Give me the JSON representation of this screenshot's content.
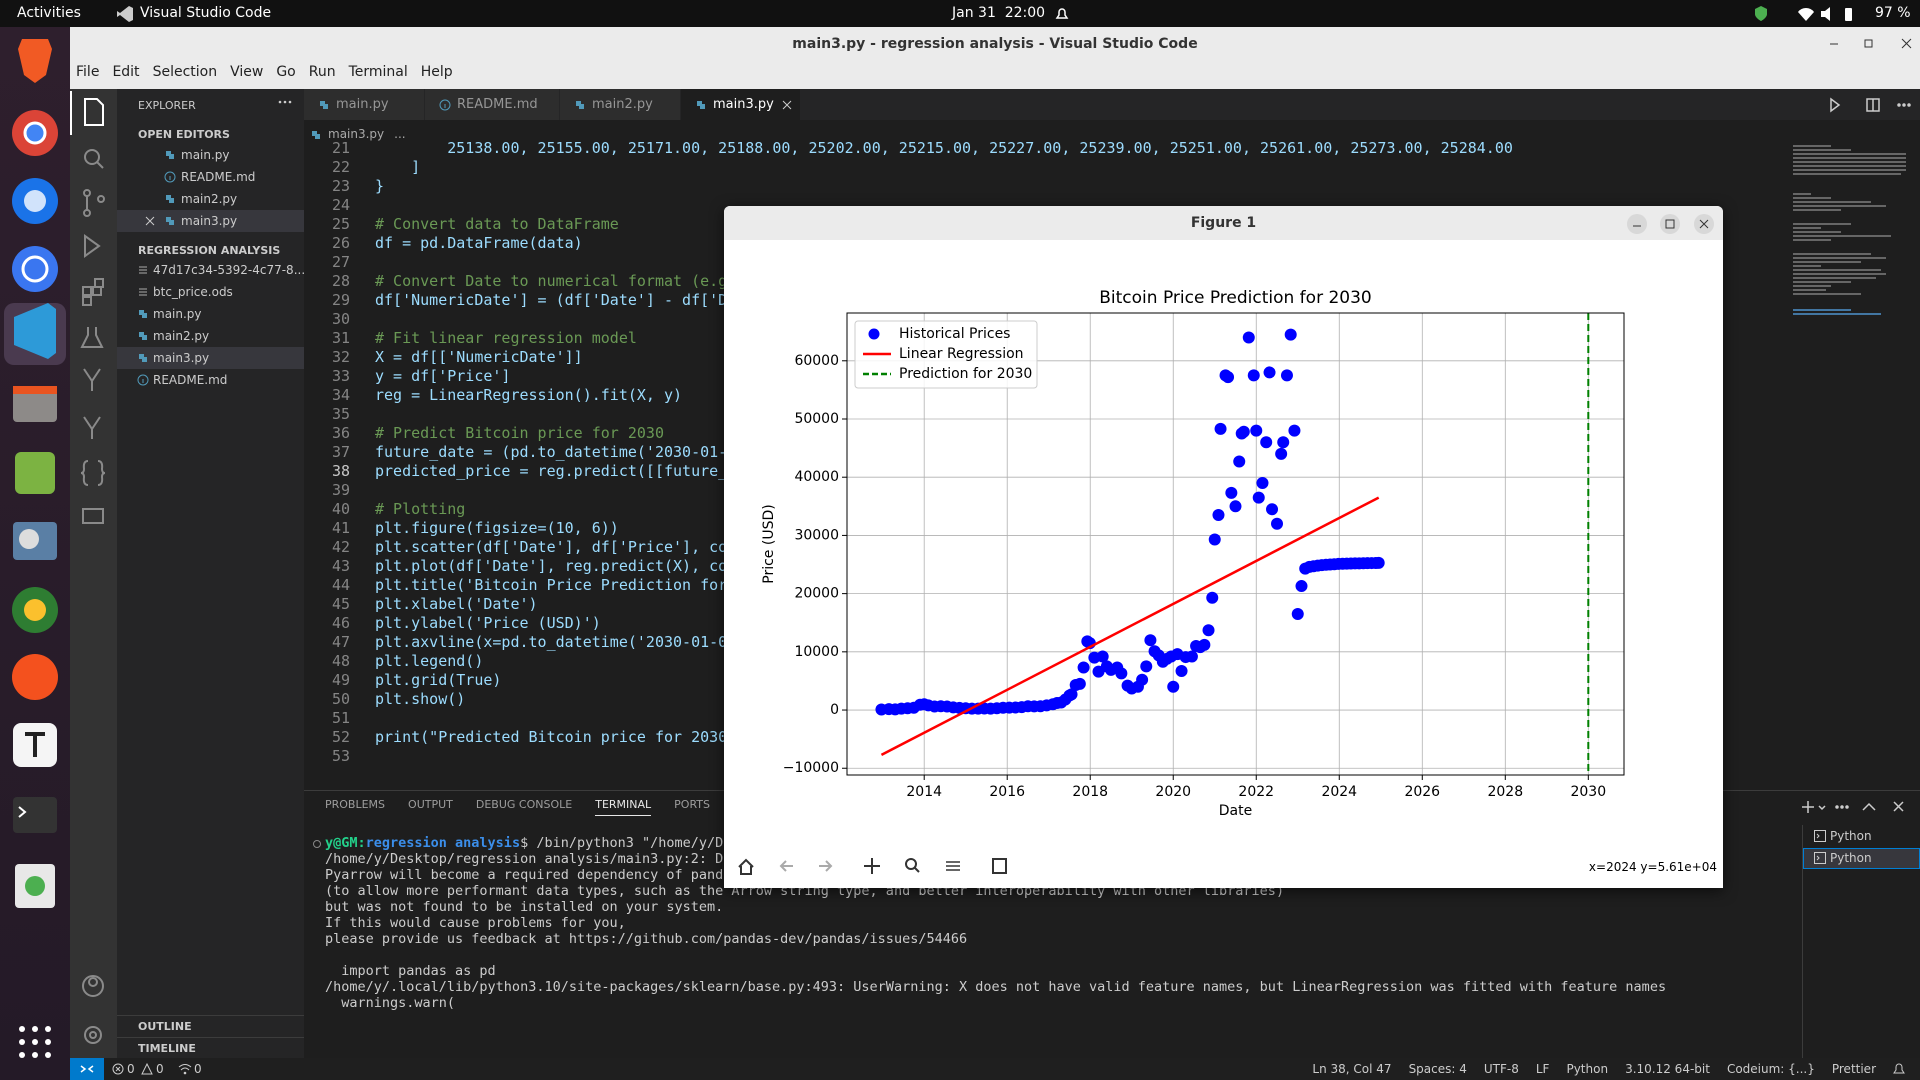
{
  "topbar": {
    "activities": "Activities",
    "app": "Visual Studio Code",
    "clock": "Jan 31  22:00",
    "battery": "97 %"
  },
  "window": {
    "title": "main3.py - regression analysis - Visual Studio Code"
  },
  "menu": [
    "File",
    "Edit",
    "Selection",
    "View",
    "Go",
    "Run",
    "Terminal",
    "Help"
  ],
  "sidebar": {
    "header": "EXPLORER",
    "open_editors_title": "OPEN EDITORS",
    "open_editors": [
      "main.py",
      "README.md",
      "main2.py",
      "main3.py"
    ],
    "folder_title": "REGRESSION ANALYSIS",
    "files": [
      "47d17c34-5392-4c77-8...",
      "btc_price.ods",
      "main.py",
      "main2.py",
      "main3.py",
      "README.md"
    ],
    "outline": "OUTLINE",
    "timeline": "TIMELINE"
  },
  "tabs": [
    "main.py",
    "README.md",
    "main2.py",
    "main3.py"
  ],
  "breadcrumb": [
    "main3.py",
    "..."
  ],
  "code": {
    "current_line": 38,
    "lines": [
      {
        "n": 21,
        "text": "        25138.00, 25155.00, 25171.00, 25188.00, 25202.00, 25215.00, 25227.00, 25239.00, 25251.00, 25261.00, 25273.00, 25284.00"
      },
      {
        "n": 22,
        "text": "    ]"
      },
      {
        "n": 23,
        "text": "}"
      },
      {
        "n": 24
      },
      {
        "n": 25,
        "text": "# Convert data to DataFrame"
      },
      {
        "n": 26,
        "text": "df = pd.DataFrame(data)"
      },
      {
        "n": 27
      },
      {
        "n": 28,
        "text": "# Convert Date to numerical format (e.g.,"
      },
      {
        "n": 29,
        "text": "df['NumericDate'] = (df['Date'] - df['Date"
      },
      {
        "n": 30
      },
      {
        "n": 31,
        "text": "# Fit linear regression model"
      },
      {
        "n": 32,
        "text": "X = df[['NumericDate']]"
      },
      {
        "n": 33,
        "text": "y = df['Price']"
      },
      {
        "n": 34,
        "text": "reg = LinearRegression().fit(X, y)"
      },
      {
        "n": 35
      },
      {
        "n": 36,
        "text": "# Predict Bitcoin price for 2030"
      },
      {
        "n": 37,
        "text": "future_date = (pd.to_datetime('2030-01-01"
      },
      {
        "n": 38,
        "text": "predicted_price = reg.predict([[future_da"
      },
      {
        "n": 39
      },
      {
        "n": 40,
        "text": "# Plotting"
      },
      {
        "n": 41,
        "text": "plt.figure(figsize=(10, 6))"
      },
      {
        "n": 42,
        "text": "plt.scatter(df['Date'], df['Price'], colo"
      },
      {
        "n": 43,
        "text": "plt.plot(df['Date'], reg.predict(X), colo"
      },
      {
        "n": 44,
        "text": "plt.title('Bitcoin Price Prediction for 2"
      },
      {
        "n": 45,
        "text": "plt.xlabel('Date')"
      },
      {
        "n": 46,
        "text": "plt.ylabel('Price (USD)')"
      },
      {
        "n": 47,
        "text": "plt.axvline(x=pd.to_datetime('2030-01-01'"
      },
      {
        "n": 48,
        "text": "plt.legend()"
      },
      {
        "n": 49,
        "text": "plt.grid(True)"
      },
      {
        "n": 50,
        "text": "plt.show()"
      },
      {
        "n": 51
      },
      {
        "n": 52,
        "text": "print(\"Predicted Bitcoin price for 2030:\""
      },
      {
        "n": 53
      }
    ]
  },
  "panel": {
    "tabs": [
      "PROBLEMS",
      "OUTPUT",
      "DEBUG CONSOLE",
      "TERMINAL",
      "PORTS"
    ],
    "prompt": {
      "user": "y@GM:",
      "path": "regression analysis",
      "command": "$ /bin/python3 \"/home/y/De"
    },
    "output": [
      "/home/y/Desktop/regression analysis/main3.py:2: De",
      "Pyarrow will become a required dependency of panda",
      "(to allow more performant data types, such as the Arrow string type, and better interoperability with other libraries)",
      "but was not found to be installed on your system.",
      "If this would cause problems for you,",
      "please provide us feedback at https://github.com/pandas-dev/pandas/issues/54466"
    ],
    "warning": [
      "  import pandas as pd",
      "/home/y/.local/lib/python3.10/site-packages/sklearn/base.py:493: UserWarning: X does not have valid feature names, but LinearRegression was fitted with feature names",
      "  warnings.warn("
    ],
    "shells": [
      "Python",
      "Python"
    ]
  },
  "statusbar": {
    "errors": "0",
    "warnings": "0",
    "ports": "0",
    "right": [
      "Ln 38, Col 47",
      "Spaces: 4",
      "UTF-8",
      "LF",
      "Python",
      "3.10.12 64-bit",
      "Codeium: {...}",
      "Prettier"
    ]
  },
  "figure": {
    "title": "Figure 1",
    "coords": "x=2024 y=5.61e+04"
  },
  "chart_data": {
    "type": "scatter",
    "title": "Bitcoin Price Prediction for 2030",
    "x_label": "Date",
    "y_label": "Price (USD)",
    "xlim": [
      2012.14,
      2030.86
    ],
    "ylim": [
      -11160,
      68210
    ],
    "xticks": [
      2014,
      2016,
      2018,
      2020,
      2022,
      2024,
      2026,
      2028,
      2030
    ],
    "yticks": [
      {
        "value": -10000,
        "label": "−10000"
      },
      0,
      10000,
      20000,
      30000,
      40000,
      50000,
      60000
    ],
    "grid": true,
    "legend": "upper left",
    "series": [
      {
        "name": "Historical Prices",
        "color": "#0000ff",
        "kind": "scatter",
        "x": [
          2012.97,
          2013.15,
          2013.3,
          2013.45,
          2013.6,
          2013.75,
          2013.9,
          2014.0,
          2014.1,
          2014.25,
          2014.4,
          2014.55,
          2014.7,
          2014.85,
          2015.0,
          2015.15,
          2015.3,
          2015.45,
          2015.6,
          2015.75,
          2015.9,
          2016.05,
          2016.2,
          2016.35,
          2016.5,
          2016.65,
          2016.8,
          2016.95,
          2017.1,
          2017.2,
          2017.3,
          2017.4,
          2017.5,
          2017.55,
          2017.65,
          2017.75,
          2017.84,
          2017.93,
          2017.99,
          2018.1,
          2018.2,
          2018.3,
          2018.4,
          2018.5,
          2018.65,
          2018.75,
          2018.9,
          2019.0,
          2019.15,
          2019.25,
          2019.35,
          2019.45,
          2019.55,
          2019.65,
          2019.75,
          2019.85,
          2019.95,
          2020.0,
          2020.1,
          2020.2,
          2020.3,
          2020.45,
          2020.55,
          2020.65,
          2020.75,
          2020.85,
          2020.94,
          2021.0,
          2021.09,
          2021.14,
          2021.26,
          2021.32,
          2021.4,
          2021.5,
          2021.59,
          2021.65,
          2021.7,
          2021.82,
          2021.94,
          2022.0,
          2022.06,
          2022.15,
          2022.24,
          2022.32,
          2022.38,
          2022.5,
          2022.6,
          2022.65,
          2022.74,
          2022.83,
          2022.92,
          2023.0,
          2023.09,
          2023.18,
          2023.28,
          2023.38,
          2023.48,
          2023.58,
          2023.68,
          2023.78,
          2023.88,
          2023.98,
          2024.08,
          2024.18,
          2024.28,
          2024.38,
          2024.48,
          2024.58,
          2024.68,
          2024.78,
          2024.88,
          2024.95
        ],
        "values": [
          100,
          150,
          120,
          250,
          300,
          400,
          900,
          1000,
          800,
          600,
          650,
          600,
          450,
          380,
          300,
          250,
          240,
          270,
          250,
          300,
          400,
          420,
          430,
          500,
          650,
          620,
          650,
          800,
          1000,
          1200,
          1300,
          1800,
          2500,
          2700,
          4300,
          4500,
          7300,
          11800,
          11500,
          9000,
          6600,
          9200,
          7500,
          6900,
          7300,
          6300,
          4200,
          3700,
          4000,
          5200,
          7500,
          12000,
          10100,
          9400,
          8300,
          8800,
          9200,
          4000,
          9600,
          6700,
          9100,
          9200,
          11000,
          10800,
          11200,
          13700,
          19300,
          29300,
          33500,
          48300,
          57500,
          57200,
          37300,
          35000,
          42700,
          47500,
          47800,
          64000,
          57500,
          48000,
          36500,
          39000,
          46000,
          58000,
          34500,
          32000,
          44000,
          46000,
          57500,
          64500,
          48000,
          16500,
          21300,
          24300,
          24600,
          24700,
          24800,
          24900,
          24950,
          25000,
          25050,
          25100,
          25130,
          25150,
          25170,
          25190,
          25200,
          25215,
          25230,
          25250,
          25270,
          25280
        ]
      },
      {
        "name": "Linear Regression",
        "color": "#ff0000",
        "kind": "line",
        "x": [
          2012.97,
          2024.95
        ],
        "values": [
          -7700,
          36500
        ]
      },
      {
        "name": "Prediction for 2030",
        "color": "#008000",
        "kind": "vline",
        "x": [
          2030
        ]
      }
    ]
  }
}
